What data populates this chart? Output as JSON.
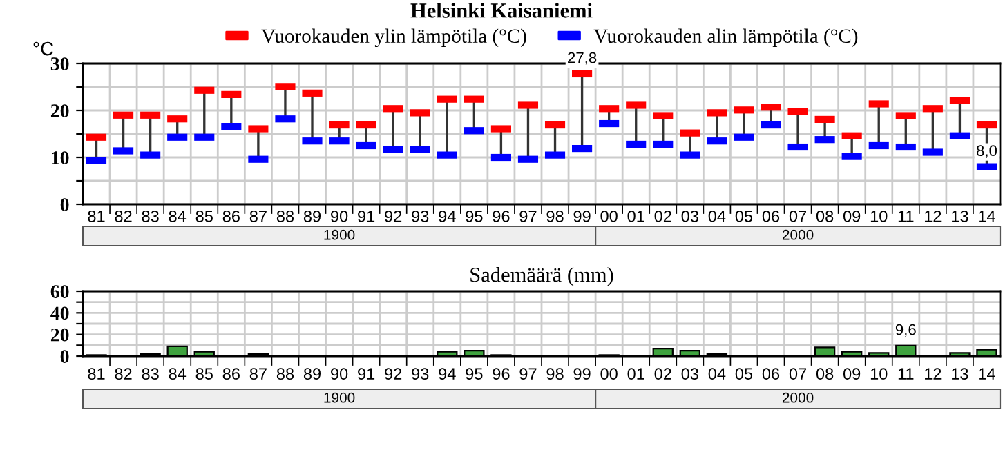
{
  "chart_data": [
    {
      "type": "scatter",
      "title": "Helsinki Kaisaniemi",
      "ylabel": "°C",
      "categories": [
        "81",
        "82",
        "83",
        "84",
        "85",
        "86",
        "87",
        "88",
        "89",
        "90",
        "91",
        "92",
        "93",
        "94",
        "95",
        "96",
        "97",
        "98",
        "99",
        "00",
        "01",
        "02",
        "03",
        "04",
        "05",
        "06",
        "07",
        "08",
        "09",
        "10",
        "11",
        "12",
        "13",
        "14"
      ],
      "series": [
        {
          "name": "Vuorokauden ylin lämpötila (°C)",
          "type": "scatter",
          "color": "#ff0000",
          "values": [
            14.3,
            19.0,
            19.0,
            18.2,
            24.3,
            23.4,
            16.1,
            25.1,
            23.7,
            16.9,
            16.9,
            20.4,
            19.5,
            22.4,
            22.4,
            16.1,
            21.1,
            16.9,
            27.8,
            20.4,
            21.1,
            18.9,
            15.2,
            19.5,
            20.1,
            20.7,
            19.8,
            18.1,
            14.6,
            21.4,
            18.9,
            20.4,
            22.1,
            16.9
          ],
          "value_labels": [
            null,
            null,
            null,
            null,
            null,
            null,
            null,
            null,
            null,
            null,
            null,
            null,
            null,
            null,
            null,
            null,
            null,
            null,
            "27,8",
            null,
            null,
            null,
            null,
            null,
            null,
            null,
            null,
            null,
            null,
            null,
            null,
            null,
            null,
            null
          ]
        },
        {
          "name": "Vuorokauden alin lämpötila (°C)",
          "type": "scatter",
          "color": "#0000ff",
          "values": [
            9.3,
            11.4,
            10.5,
            14.3,
            14.3,
            16.6,
            9.6,
            18.2,
            13.5,
            13.5,
            12.5,
            11.7,
            11.7,
            10.5,
            15.7,
            10.0,
            9.6,
            10.5,
            11.9,
            17.2,
            12.8,
            12.8,
            10.5,
            13.5,
            14.3,
            16.9,
            12.2,
            13.8,
            10.2,
            12.5,
            12.2,
            11.1,
            14.6,
            8.0
          ],
          "value_labels": [
            null,
            null,
            null,
            null,
            null,
            null,
            null,
            null,
            null,
            null,
            null,
            null,
            null,
            null,
            null,
            null,
            null,
            null,
            null,
            null,
            null,
            null,
            null,
            null,
            null,
            null,
            null,
            null,
            null,
            null,
            null,
            null,
            null,
            "8,0"
          ]
        }
      ],
      "ylim": [
        0,
        30
      ],
      "yticks": [
        0,
        {
          "value": 5,
          "label": null
        },
        10,
        {
          "value": 15,
          "label": null
        },
        20,
        {
          "value": 25,
          "label": null
        },
        30
      ],
      "grid": true,
      "legend": "top",
      "annotations": [
        "1900",
        "2000"
      ]
    },
    {
      "type": "bar",
      "title": "Sademäärä (mm)",
      "categories": [
        "81",
        "82",
        "83",
        "84",
        "85",
        "86",
        "87",
        "88",
        "89",
        "90",
        "91",
        "92",
        "93",
        "94",
        "95",
        "96",
        "97",
        "98",
        "99",
        "00",
        "01",
        "02",
        "03",
        "04",
        "05",
        "06",
        "07",
        "08",
        "09",
        "10",
        "11",
        "12",
        "13",
        "14"
      ],
      "series": [
        {
          "color": "#3fa33f",
          "values": [
            1,
            0,
            2,
            9,
            4,
            0,
            2,
            0,
            0,
            0,
            0,
            0,
            0,
            4,
            5,
            1,
            0,
            0,
            0,
            1,
            0,
            7,
            5,
            2,
            0,
            0,
            0,
            8,
            4,
            3,
            9.6,
            0,
            3,
            6
          ],
          "value_labels": [
            null,
            null,
            null,
            null,
            null,
            null,
            null,
            null,
            null,
            null,
            null,
            null,
            null,
            null,
            null,
            null,
            null,
            null,
            null,
            null,
            null,
            null,
            null,
            null,
            null,
            null,
            null,
            null,
            null,
            null,
            "9,6",
            null,
            null,
            null
          ]
        }
      ],
      "ylim": [
        0,
        60
      ],
      "yticks": [
        0,
        {
          "value": 10,
          "label": null
        },
        20,
        {
          "value": 30,
          "label": null
        },
        40,
        {
          "value": 50,
          "label": null
        },
        60
      ],
      "grid": true,
      "annotations": [
        "1900",
        "2000"
      ]
    }
  ]
}
